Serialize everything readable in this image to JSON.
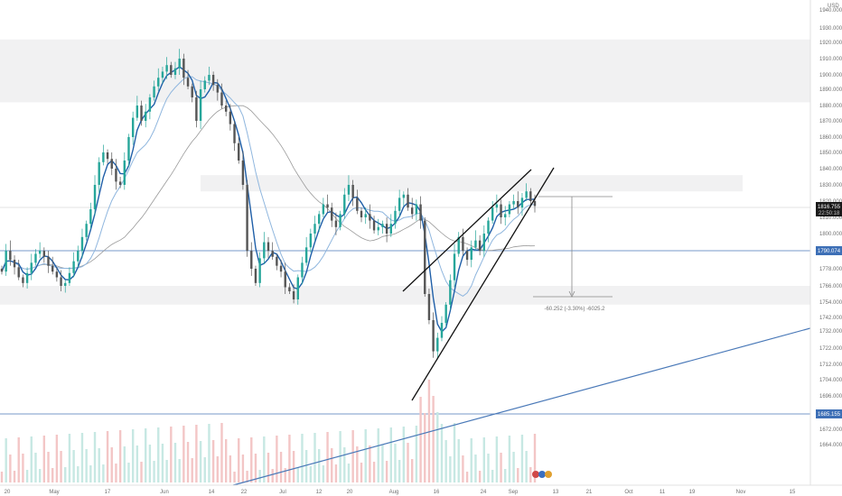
{
  "chart_data": {
    "type": "candlestick",
    "currency": "USD",
    "last_price": "1816.755",
    "countdown": "22:50:18",
    "y_ticks": [
      "1940.000",
      "1930.000",
      "1920.000",
      "1910.000",
      "1900.000",
      "1890.000",
      "1880.000",
      "1870.000",
      "1860.000",
      "1850.000",
      "1840.000",
      "1830.000",
      "1820.000",
      "1810.000",
      "1800.000",
      "1790.074",
      "1778.000",
      "1766.000",
      "1754.000",
      "1742.000",
      "1732.000",
      "1722.000",
      "1712.000",
      "1704.000",
      "1696.000",
      "1685.155",
      "1672.000",
      "1664.000"
    ],
    "x_ticks": [
      "20",
      "May",
      "17",
      "Jun",
      "14",
      "22",
      "Jul",
      "12",
      "20",
      "Aug",
      "16",
      "24",
      "Sep",
      "13",
      "21",
      "Oct",
      "11",
      "19",
      "Nov",
      "15"
    ],
    "horizontal_levels": [
      {
        "price": 1790.074,
        "label": "1790.074",
        "color": "#4a79b8"
      },
      {
        "price": 1685.155,
        "label": "1685.155",
        "color": "#4a79b8"
      }
    ],
    "zones": [
      {
        "from": 1882,
        "to": 1922
      },
      {
        "from": 1826,
        "to": 1836
      },
      {
        "from": 1752,
        "to": 1766
      }
    ],
    "measure_label": "-60.252 (-3.30%) -6025.2",
    "wedge": {
      "upper": [
        [
          1732,
          "Aug 5"
        ],
        [
          1840,
          "Sep 7"
        ]
      ],
      "lower": [
        [
          1708,
          "Aug 3"
        ],
        [
          1838,
          "Sep 9"
        ]
      ]
    },
    "trendline": [
      [
        1650,
        "Jun 20"
      ],
      [
        1746,
        "Nov 25"
      ]
    ],
    "closes": [
      1776,
      1790,
      1784,
      1779,
      1772,
      1768,
      1775,
      1782,
      1788,
      1790,
      1786,
      1780,
      1776,
      1772,
      1766,
      1768,
      1775,
      1783,
      1790,
      1798,
      1806,
      1815,
      1830,
      1844,
      1850,
      1846,
      1840,
      1832,
      1830,
      1845,
      1860,
      1872,
      1880,
      1870,
      1876,
      1885,
      1892,
      1898,
      1902,
      1906,
      1900,
      1904,
      1910,
      1898,
      1892,
      1885,
      1870,
      1890,
      1896,
      1900,
      1893,
      1888,
      1880,
      1876,
      1868,
      1856,
      1845,
      1830,
      1790,
      1778,
      1768,
      1785,
      1795,
      1790,
      1786,
      1780,
      1776,
      1765,
      1762,
      1756,
      1772,
      1782,
      1792,
      1800,
      1806,
      1812,
      1818,
      1816,
      1808,
      1804,
      1812,
      1824,
      1830,
      1822,
      1814,
      1810,
      1812,
      1808,
      1802,
      1804,
      1806,
      1800,
      1806,
      1814,
      1822,
      1824,
      1816,
      1812,
      1818,
      1808,
      1760,
      1740,
      1720,
      1728,
      1738,
      1752,
      1770,
      1788,
      1798,
      1790,
      1784,
      1792,
      1796,
      1790,
      1800,
      1808,
      1816,
      1818,
      1810,
      1812,
      1818,
      1820,
      1816,
      1822,
      1826,
      1820,
      1817
    ]
  },
  "colors": {
    "up": "#26a69a",
    "down": "#555555",
    "ma_dark": "#1f5fa8",
    "ma_light": "#8fb6de",
    "ma_gray": "#9a9a9a"
  }
}
